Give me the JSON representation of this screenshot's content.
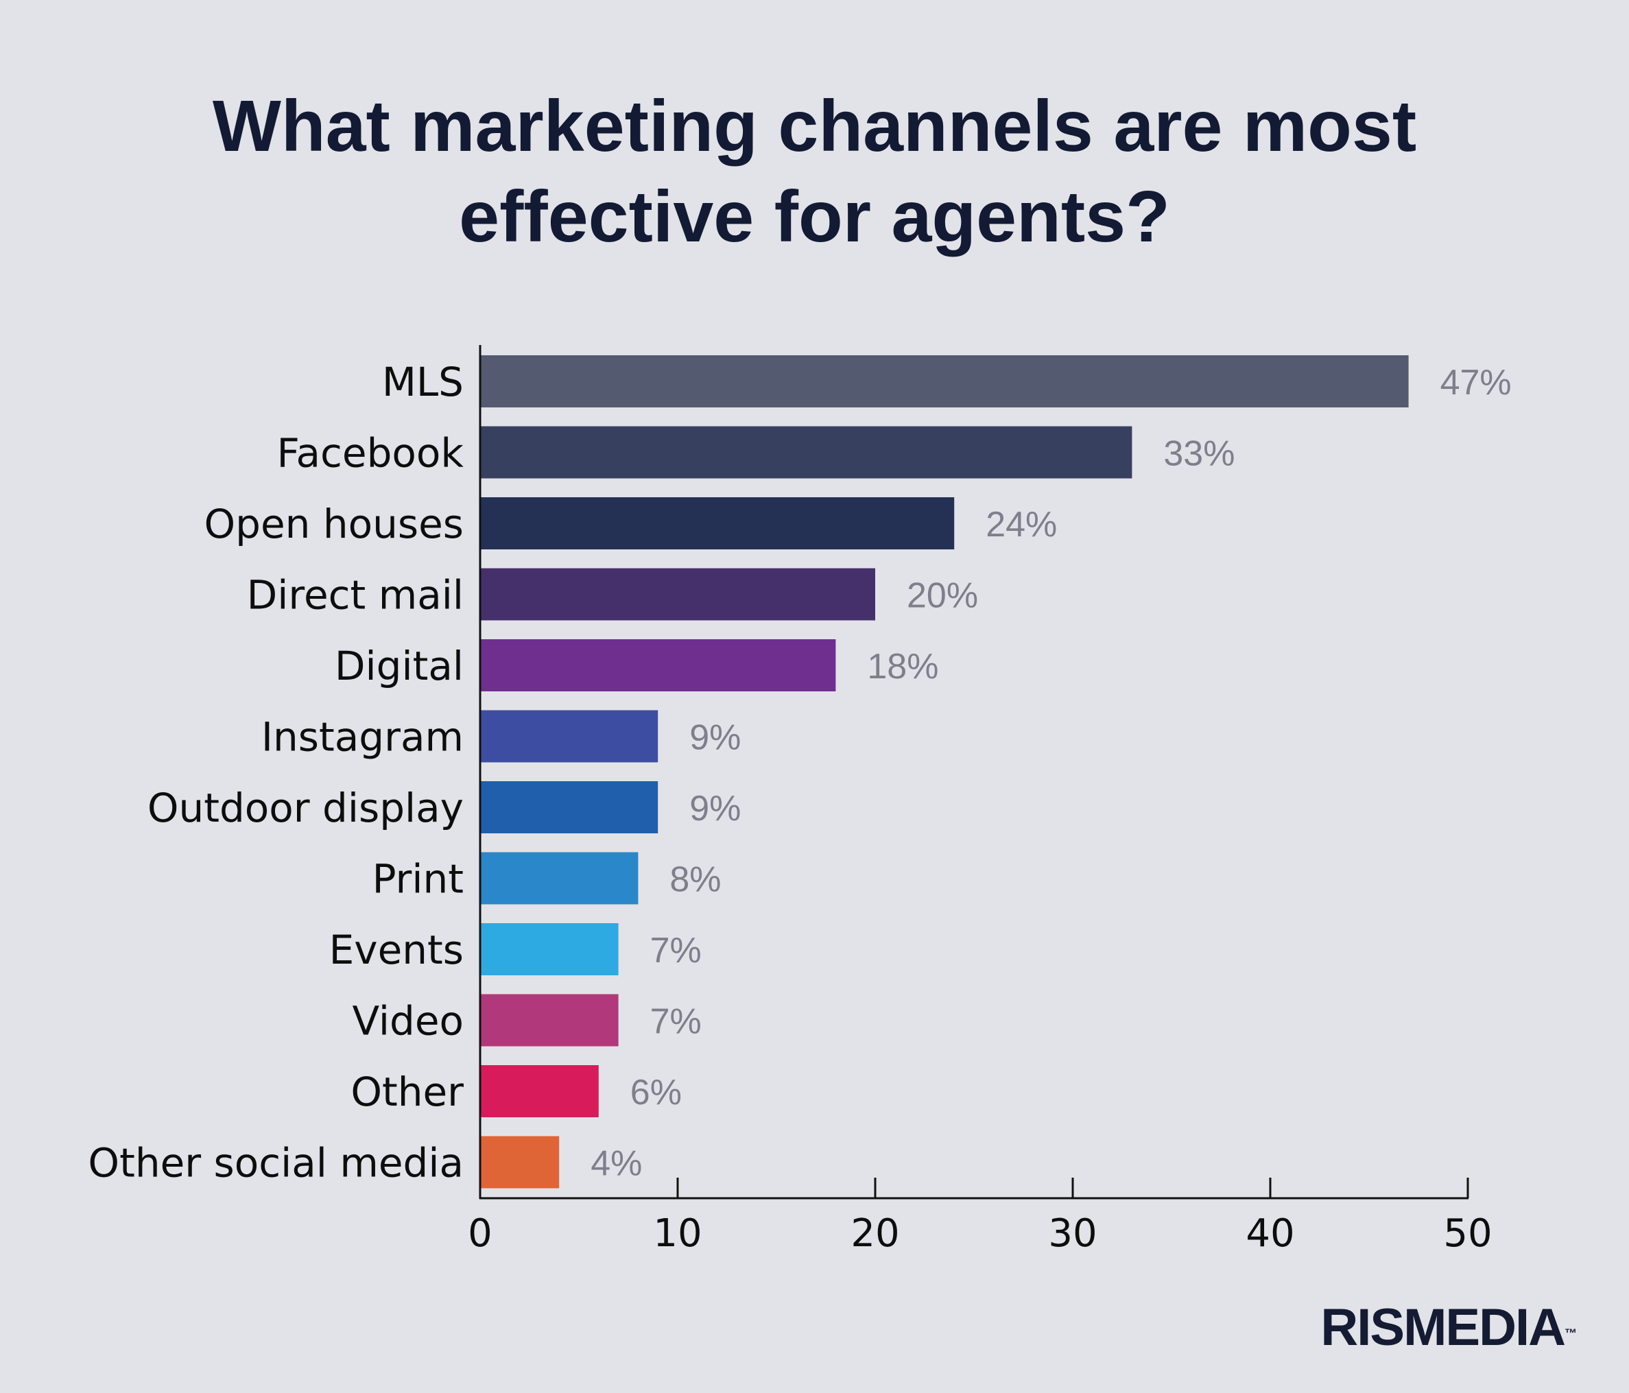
{
  "chart_data": {
    "type": "bar",
    "orientation": "horizontal",
    "title": "What marketing channels are most effective for agents?",
    "categories": [
      "MLS",
      "Facebook",
      "Open houses",
      "Direct mail",
      "Digital",
      "Instagram",
      "Outdoor display",
      "Print",
      "Events",
      "Video",
      "Other",
      "Other social media"
    ],
    "values": [
      47,
      33,
      24,
      20,
      18,
      9,
      9,
      8,
      7,
      7,
      6,
      4
    ],
    "value_labels": [
      "47%",
      "33%",
      "24%",
      "20%",
      "18%",
      "9%",
      "9%",
      "8%",
      "7%",
      "7%",
      "6%",
      "4%"
    ],
    "colors": [
      "#545a70",
      "#384060",
      "#243155",
      "#45306c",
      "#6f2f8f",
      "#3d4ea2",
      "#1f5fab",
      "#2987ca",
      "#2eaae2",
      "#b1387a",
      "#d81b5b",
      "#df6537"
    ],
    "xlim": [
      0,
      50
    ],
    "xticks": [
      0,
      10,
      20,
      30,
      40,
      50
    ],
    "xtick_labels": [
      "0",
      "10",
      "20",
      "30",
      "40",
      "50"
    ],
    "xlabel": "",
    "ylabel": "",
    "grid": false,
    "legend": "none"
  },
  "title_lines": [
    "What marketing channels are most",
    "effective for agents?"
  ],
  "brand": {
    "name": "RISMEDIA",
    "trademark": "™"
  }
}
